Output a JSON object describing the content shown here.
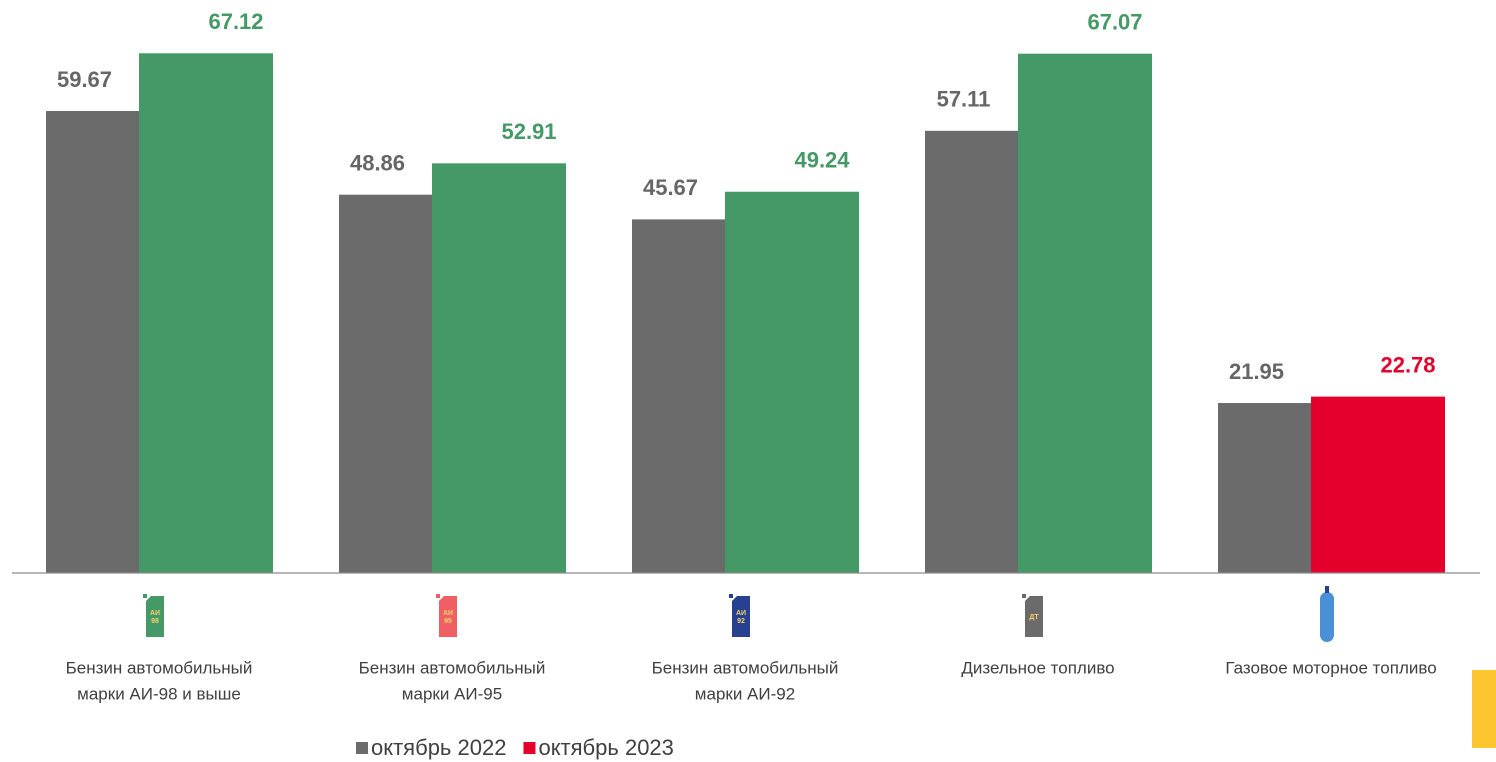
{
  "chart_data": {
    "type": "bar",
    "categories": [
      [
        "Бензин автомобильный",
        "марки АИ-98 и выше"
      ],
      [
        "Бензин автомобильный",
        "марки АИ-95"
      ],
      [
        "Бензин автомобильный",
        "марки АИ-92"
      ],
      [
        "Дизельное топливо"
      ],
      [
        "Газовое моторное топливо"
      ]
    ],
    "icon_labels": [
      [
        "АИ",
        "98"
      ],
      [
        "АИ",
        "95"
      ],
      [
        "АИ",
        "92"
      ],
      [
        "ДТ"
      ],
      null
    ],
    "series": [
      {
        "name": "октябрь 2022",
        "color": "#6b6b6b",
        "values": [
          59.67,
          48.86,
          45.67,
          57.11,
          21.95
        ]
      },
      {
        "name": "октябрь 2023",
        "color": "#e4002b",
        "colors": [
          "#459966",
          "#459966",
          "#459966",
          "#459966",
          "#e4002b"
        ],
        "values": [
          67.12,
          52.91,
          49.24,
          67.07,
          22.78
        ]
      }
    ],
    "ylim": [
      0,
      70
    ],
    "legend": "bottom"
  }
}
